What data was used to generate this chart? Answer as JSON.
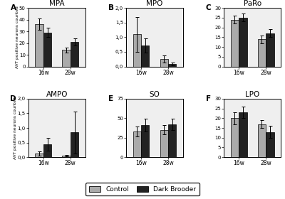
{
  "subplots": [
    {
      "label": "A",
      "title": "MPA",
      "ylim": [
        0,
        50
      ],
      "yticks": [
        0,
        10,
        20,
        30,
        40,
        50
      ],
      "ytick_labels": [
        "0",
        "10",
        "20",
        "30",
        "40",
        "50"
      ],
      "groups": [
        "16w",
        "28w"
      ],
      "control_means": [
        36,
        14
      ],
      "control_errs": [
        5,
        2
      ],
      "dark_means": [
        29,
        21
      ],
      "dark_errs": [
        4,
        3
      ]
    },
    {
      "label": "B",
      "title": "MPO",
      "ylim": [
        0,
        2.0
      ],
      "yticks": [
        0.0,
        0.5,
        1.0,
        1.5,
        2.0
      ],
      "ytick_labels": [
        "0,0",
        "0,5",
        "1,0",
        "1,5",
        "2,0"
      ],
      "groups": [
        "16w",
        "28w"
      ],
      "control_means": [
        1.1,
        0.25
      ],
      "control_errs": [
        0.6,
        0.12
      ],
      "dark_means": [
        0.72,
        0.08
      ],
      "dark_errs": [
        0.25,
        0.05
      ]
    },
    {
      "label": "C",
      "title": "PaRo",
      "ylim": [
        0,
        30
      ],
      "yticks": [
        0,
        5,
        10,
        15,
        20,
        25,
        30
      ],
      "ytick_labels": [
        "0",
        "5",
        "10",
        "15",
        "20",
        "25",
        "30"
      ],
      "groups": [
        "16w",
        "28w"
      ],
      "control_means": [
        24,
        14
      ],
      "control_errs": [
        2,
        2
      ],
      "dark_means": [
        25,
        17
      ],
      "dark_errs": [
        2,
        2
      ]
    },
    {
      "label": "D",
      "title": "AMPO",
      "ylim": [
        0,
        2.0
      ],
      "yticks": [
        0.0,
        0.5,
        1.0,
        1.5,
        2.0
      ],
      "ytick_labels": [
        "0,0",
        "0,5",
        "1,0",
        "1,5",
        "2,0"
      ],
      "groups": [
        "16w",
        "28w"
      ],
      "control_means": [
        0.13,
        0.05
      ],
      "control_errs": [
        0.08,
        0.03
      ],
      "dark_means": [
        0.45,
        0.85
      ],
      "dark_errs": [
        0.22,
        0.72
      ]
    },
    {
      "label": "E",
      "title": "SO",
      "ylim": [
        0,
        75
      ],
      "yticks": [
        0,
        25,
        50,
        75
      ],
      "ytick_labels": [
        "0",
        "25",
        "50",
        "75"
      ],
      "groups": [
        "16w",
        "28w"
      ],
      "control_means": [
        33,
        35
      ],
      "control_errs": [
        6,
        6
      ],
      "dark_means": [
        41,
        42
      ],
      "dark_errs": [
        8,
        7
      ]
    },
    {
      "label": "F",
      "title": "LPO",
      "ylim": [
        0,
        30
      ],
      "yticks": [
        0,
        5,
        10,
        15,
        20,
        25,
        30
      ],
      "ytick_labels": [
        "0",
        "5",
        "10",
        "15",
        "20",
        "25",
        "30"
      ],
      "groups": [
        "16w",
        "28w"
      ],
      "control_means": [
        20,
        17
      ],
      "control_errs": [
        3,
        2
      ],
      "dark_means": [
        23,
        13
      ],
      "dark_errs": [
        3,
        3
      ]
    }
  ],
  "control_color": "#aaaaaa",
  "dark_color": "#222222",
  "ylabel": "AVT positive neurons counted",
  "bar_width": 0.3,
  "legend_labels": [
    "Control",
    "Dark Brooder"
  ],
  "bg_color": "#efefef"
}
